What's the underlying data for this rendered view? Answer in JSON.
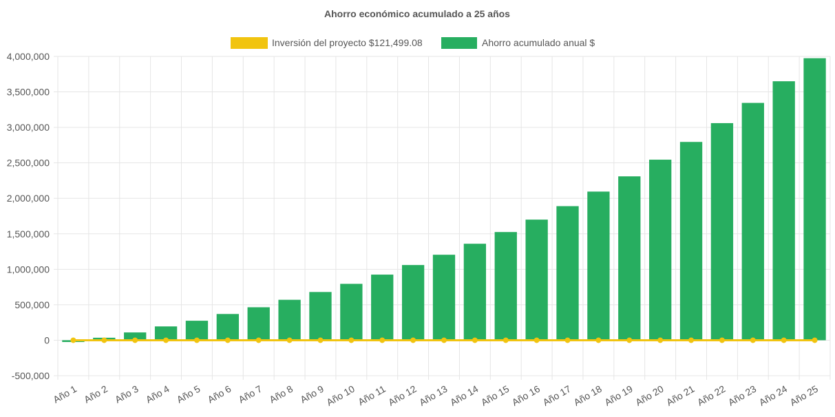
{
  "chart_data": {
    "type": "bar",
    "title": "Ahorro económico acumulado a 25 años",
    "xlabel": "",
    "ylabel": "",
    "ylim": [
      -500000,
      4000000
    ],
    "yticks": [
      4000000,
      3500000,
      3000000,
      2500000,
      2000000,
      1500000,
      1000000,
      500000,
      0,
      -500000
    ],
    "ytick_labels": [
      "4,000,000",
      "3,500,000",
      "3,000,000",
      "2,500,000",
      "2,000,000",
      "1,500,000",
      "1,000,000",
      "500,000",
      "0",
      "-500,000"
    ],
    "grid": true,
    "legend_position": "top",
    "categories": [
      "Año 1",
      "Año 2",
      "Año 3",
      "Año 4",
      "Año 5",
      "Año 6",
      "Año 7",
      "Año 8",
      "Año 9",
      "Año 10",
      "Año 11",
      "Año 12",
      "Año 13",
      "Año 14",
      "Año 15",
      "Año 16",
      "Año 17",
      "Año 18",
      "Año 19",
      "Año 20",
      "Año 21",
      "Año 22",
      "Año 23",
      "Año 24",
      "Año 25"
    ],
    "series": [
      {
        "name": "Inversión del proyecto $121,499.08",
        "type": "line",
        "color": "#f1c40f",
        "values": [
          0,
          0,
          0,
          0,
          0,
          0,
          0,
          0,
          0,
          0,
          0,
          0,
          0,
          0,
          0,
          0,
          0,
          0,
          0,
          0,
          0,
          0,
          0,
          0,
          0
        ]
      },
      {
        "name": "Ahorro acumulado anual $",
        "type": "bar",
        "color": "#27ae60",
        "values": [
          -25000,
          35000,
          110000,
          195000,
          275000,
          370000,
          465000,
          570000,
          680000,
          795000,
          925000,
          1060000,
          1205000,
          1360000,
          1525000,
          1700000,
          1890000,
          2095000,
          2310000,
          2545000,
          2795000,
          3060000,
          3345000,
          3650000,
          3975000
        ]
      }
    ]
  }
}
